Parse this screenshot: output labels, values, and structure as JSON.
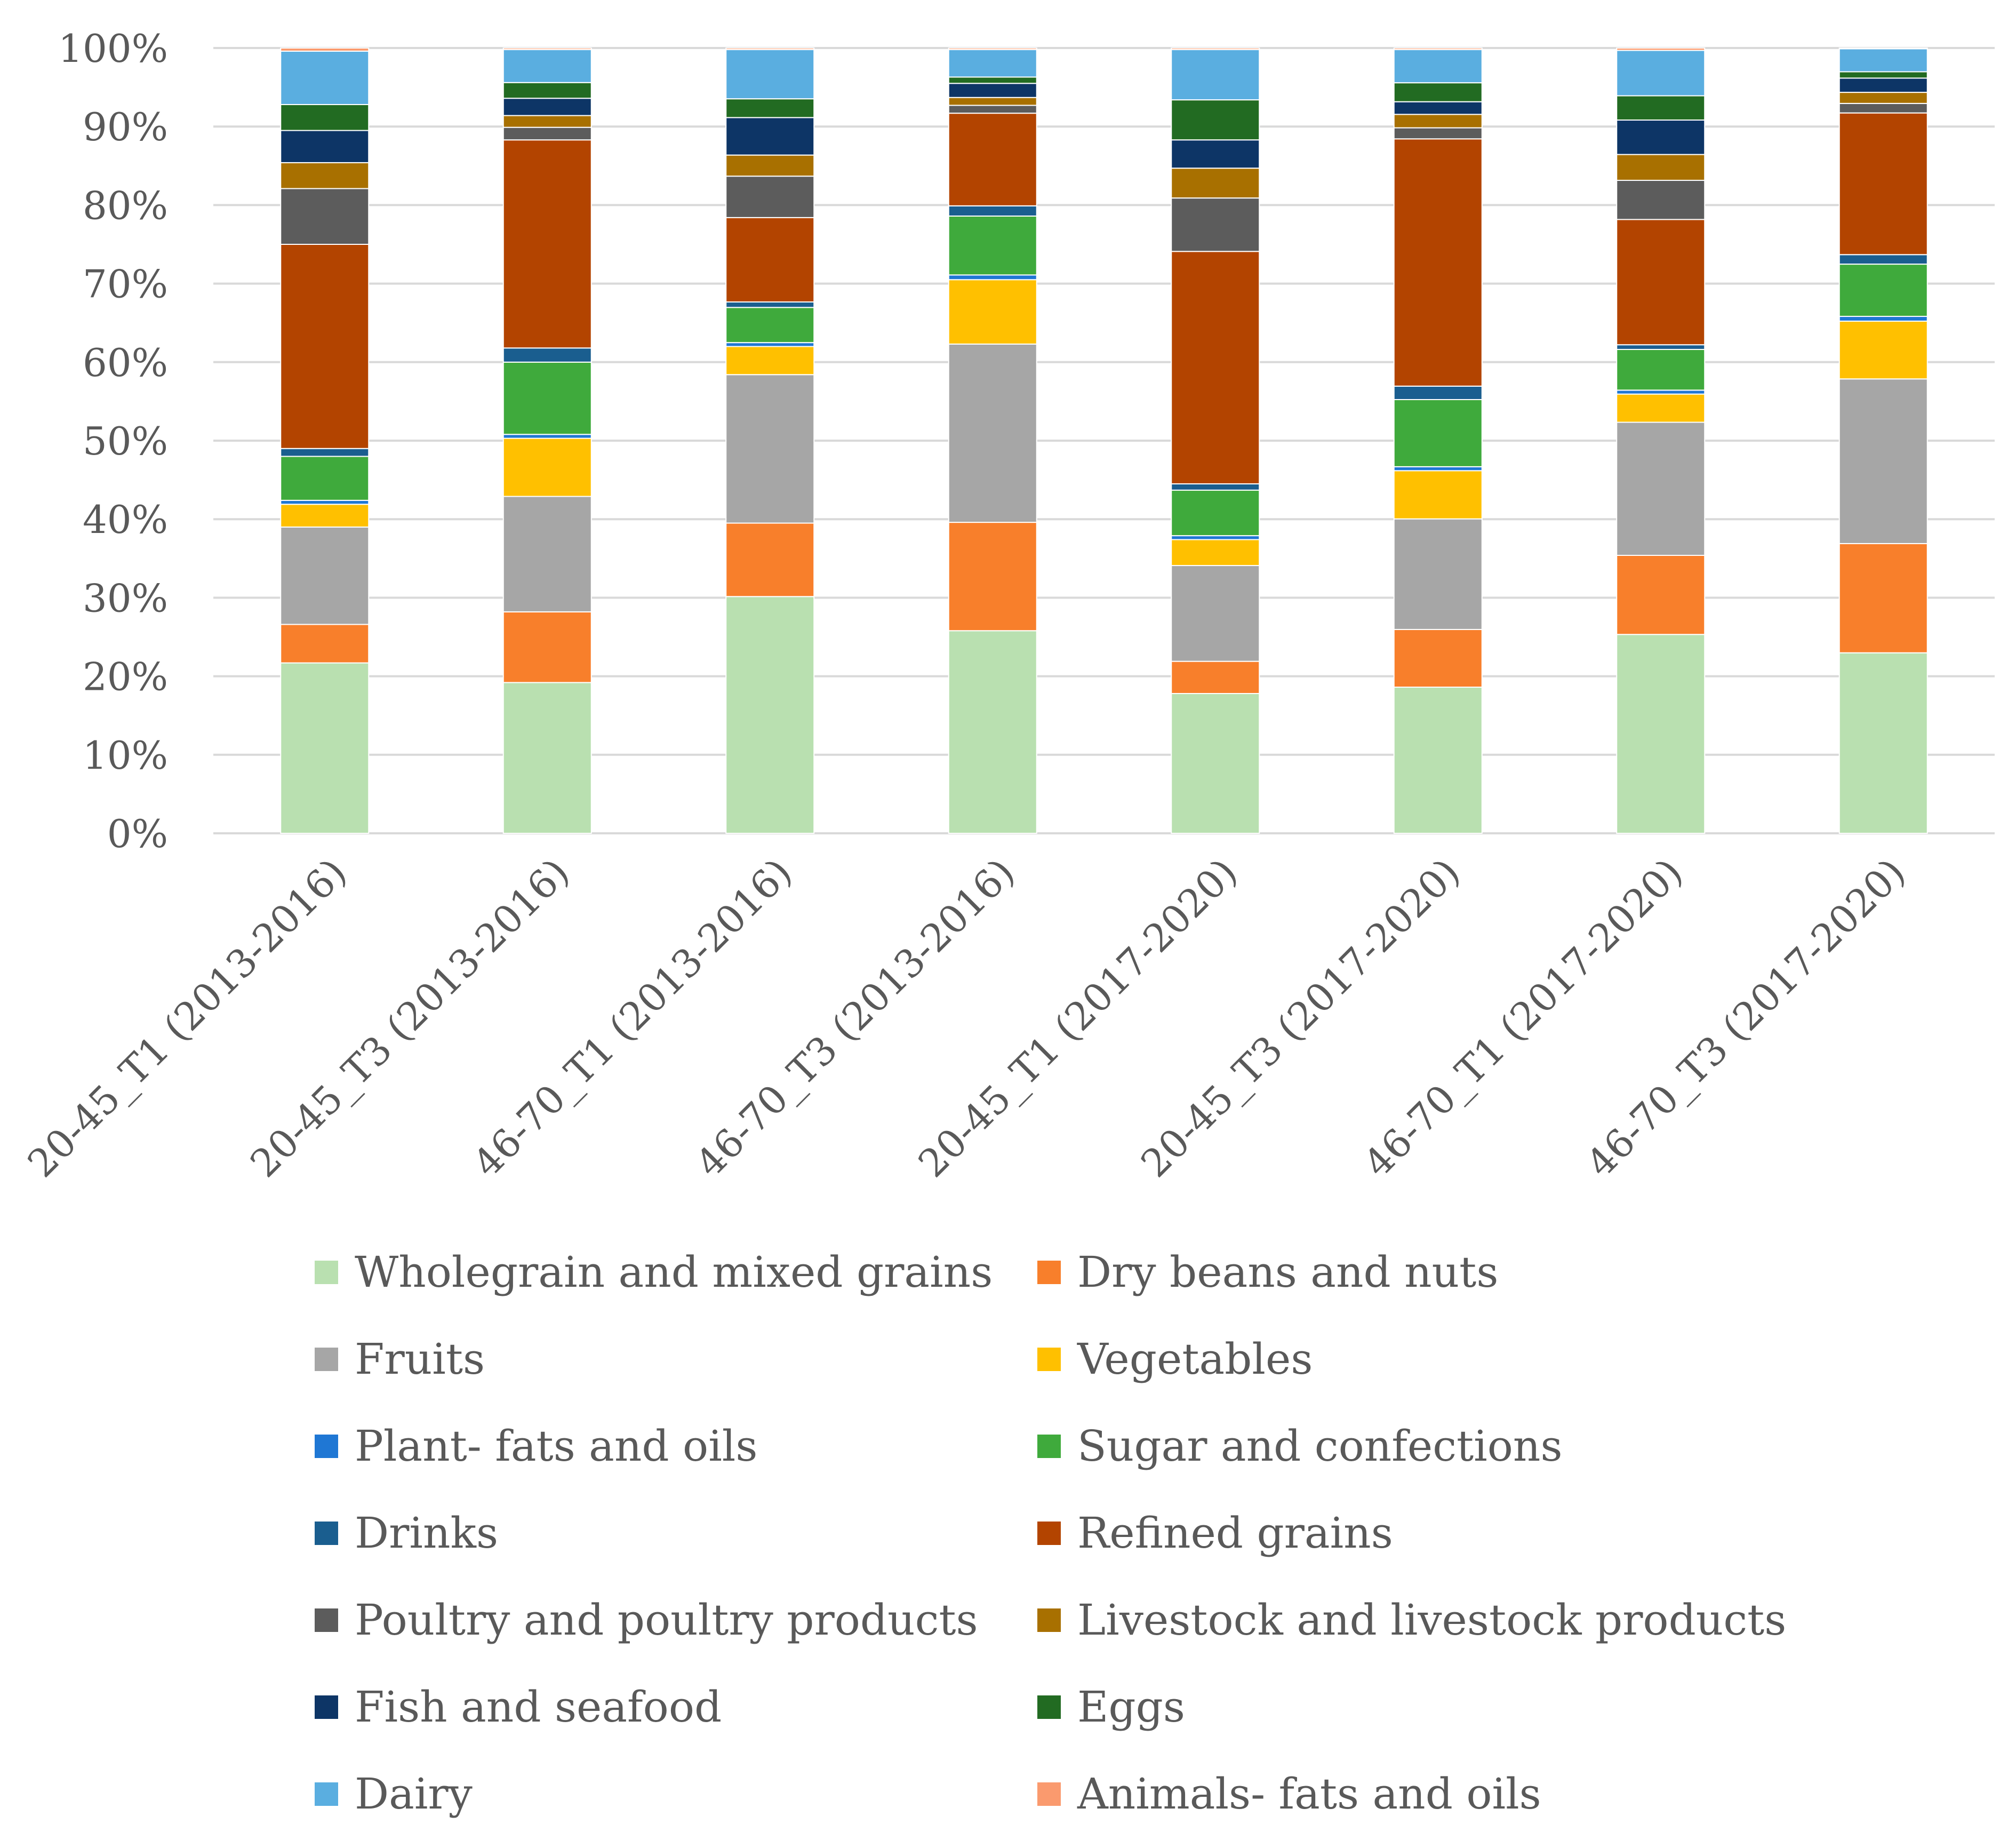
{
  "chart_data": {
    "type": "bar",
    "stacked": true,
    "percent_stacked": true,
    "title": "",
    "xlabel": "",
    "ylabel": "",
    "ylim": [
      0,
      100
    ],
    "yticks": [
      0,
      10,
      20,
      30,
      40,
      50,
      60,
      70,
      80,
      90,
      100
    ],
    "ytick_labels": [
      "0%",
      "10%",
      "20%",
      "30%",
      "40%",
      "50%",
      "60%",
      "70%",
      "80%",
      "90%",
      "100%"
    ],
    "grid": true,
    "legend_position": "bottom",
    "categories": [
      "20-45_T1 (2013-2016)",
      "20-45_T3 (2013-2016)",
      "46-70_T1 (2013-2016)",
      "46-70_T3 (2013-2016)",
      "20-45_T1 (2017-2020)",
      "20-45_T3 (2017-2020)",
      "46-70_T1 (2017-2020)",
      "46-70_T3 (2017-2020)"
    ],
    "series": [
      {
        "name": "Wholegrain and mixed grains",
        "color": "#b9e0b0",
        "values": [
          21.7,
          19.2,
          30.3,
          25.8,
          17.8,
          18.5,
          25.4,
          22.8
        ]
      },
      {
        "name": "Dry beans and nuts",
        "color": "#f87f2b",
        "values": [
          4.9,
          9.0,
          9.4,
          13.8,
          4.1,
          7.3,
          10.1,
          13.8
        ]
      },
      {
        "name": "Fruits",
        "color": "#a6a6a6",
        "values": [
          12.4,
          14.7,
          19.0,
          22.7,
          12.2,
          14.0,
          17.0,
          20.8
        ]
      },
      {
        "name": "Vegetables",
        "color": "#ffc000",
        "values": [
          2.9,
          7.4,
          3.6,
          8.2,
          3.3,
          6.1,
          3.6,
          7.3
        ]
      },
      {
        "name": "Plant- fats and oils",
        "color": "#1f77d4",
        "values": [
          0.5,
          0.5,
          0.5,
          0.6,
          0.5,
          0.5,
          0.5,
          0.6
        ]
      },
      {
        "name": "Sugar and confections",
        "color": "#3faa3c",
        "values": [
          5.6,
          9.2,
          4.5,
          7.5,
          5.8,
          8.5,
          5.2,
          6.6
        ]
      },
      {
        "name": "Drinks",
        "color": "#1a5e8f",
        "values": [
          1.0,
          1.8,
          0.7,
          1.3,
          0.8,
          1.7,
          0.6,
          1.2
        ]
      },
      {
        "name": "Refined grains",
        "color": "#b34400",
        "values": [
          26.0,
          26.5,
          10.8,
          11.8,
          29.6,
          31.3,
          16.0,
          17.9
        ]
      },
      {
        "name": "Poultry and poultry products",
        "color": "#5c5c5c",
        "values": [
          7.1,
          1.6,
          5.3,
          1.0,
          6.8,
          1.4,
          5.0,
          1.2
        ]
      },
      {
        "name": "Livestock and livestock products",
        "color": "#a87000",
        "values": [
          3.3,
          1.5,
          2.7,
          1.0,
          3.8,
          1.7,
          3.3,
          1.4
        ]
      },
      {
        "name": "Fish and seafood",
        "color": "#0d3566",
        "values": [
          4.1,
          2.2,
          4.8,
          1.8,
          3.6,
          1.6,
          4.4,
          1.8
        ]
      },
      {
        "name": "Eggs",
        "color": "#226b22",
        "values": [
          3.3,
          2.0,
          2.4,
          0.8,
          5.1,
          2.4,
          3.1,
          0.8
        ]
      },
      {
        "name": "Dairy",
        "color": "#5aaee0",
        "values": [
          6.8,
          4.2,
          6.3,
          3.5,
          6.4,
          4.2,
          5.8,
          2.9
        ]
      },
      {
        "name": "Animals- fats and oils",
        "color": "#fa9a6e",
        "values": [
          0.4,
          0.2,
          0.2,
          0.2,
          0.2,
          0.2,
          0.3,
          0.1
        ]
      }
    ]
  }
}
